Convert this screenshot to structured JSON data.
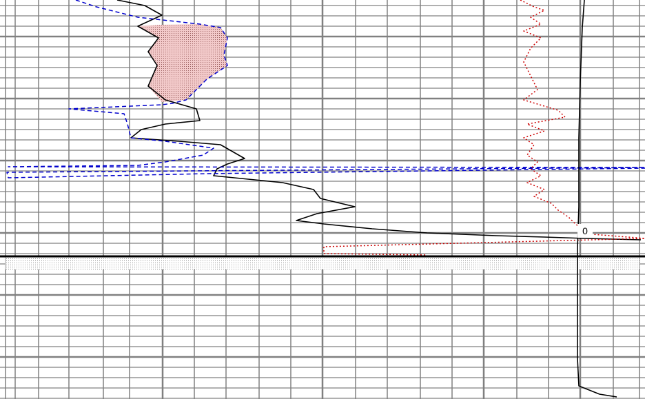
{
  "chart_data": {
    "type": "line",
    "title": "",
    "xlabel": "",
    "ylabel": "",
    "grid": true,
    "legend": "none",
    "background_color": "#ffffff",
    "grid_color": "#808080",
    "formation_boundary_color": "#000000",
    "zero_marker_label": "0",
    "series": [
      {
        "color": "#000000",
        "style": "solid",
        "points": [
          [
            170,
            0
          ],
          [
            210,
            8
          ],
          [
            235,
            22
          ],
          [
            200,
            38
          ],
          [
            230,
            55
          ],
          [
            215,
            75
          ],
          [
            228,
            95
          ],
          [
            215,
            125
          ],
          [
            240,
            145
          ],
          [
            285,
            158
          ],
          [
            290,
            175
          ],
          [
            240,
            180
          ],
          [
            205,
            188
          ],
          [
            190,
            200
          ],
          [
            260,
            205
          ],
          [
            320,
            210
          ],
          [
            355,
            230
          ],
          [
            330,
            238
          ],
          [
            315,
            245
          ],
          [
            310,
            255
          ],
          [
            360,
            260
          ],
          [
            410,
            265
          ],
          [
            455,
            275
          ],
          [
            465,
            288
          ],
          [
            515,
            300
          ],
          [
            460,
            310
          ],
          [
            430,
            320
          ],
          [
            470,
            325
          ],
          [
            540,
            332
          ],
          [
            620,
            338
          ],
          [
            720,
            342
          ],
          [
            790,
            344
          ],
          [
            850,
            346
          ],
          [
            890,
            347
          ],
          [
            930,
            348
          ]
        ]
      },
      {
        "color": "#0000cc",
        "style": "dashed",
        "points": [
          [
            110,
            0
          ],
          [
            140,
            10
          ],
          [
            200,
            25
          ],
          [
            290,
            35
          ],
          [
            320,
            40
          ],
          [
            330,
            55
          ],
          [
            325,
            80
          ],
          [
            330,
            95
          ],
          [
            300,
            115
          ],
          [
            285,
            130
          ],
          [
            270,
            145
          ],
          [
            250,
            150
          ],
          [
            235,
            152
          ],
          [
            100,
            158
          ],
          [
            180,
            165
          ],
          [
            185,
            180
          ],
          [
            190,
            200
          ],
          [
            240,
            205
          ],
          [
            310,
            215
          ],
          [
            295,
            225
          ],
          [
            240,
            235
          ],
          [
            200,
            240
          ],
          [
            12,
            242
          ],
          [
            936,
            243
          ],
          [
            10,
            250
          ],
          [
            12,
            258
          ],
          [
            300,
            252
          ],
          [
            936,
            244
          ]
        ]
      },
      {
        "color": "#cc0000",
        "style": "dotted",
        "points": [
          [
            755,
            0
          ],
          [
            775,
            10
          ],
          [
            790,
            15
          ],
          [
            770,
            25
          ],
          [
            785,
            35
          ],
          [
            760,
            45
          ],
          [
            785,
            55
          ],
          [
            770,
            70
          ],
          [
            760,
            90
          ],
          [
            770,
            110
          ],
          [
            780,
            130
          ],
          [
            760,
            145
          ],
          [
            810,
            160
          ],
          [
            820,
            170
          ],
          [
            765,
            180
          ],
          [
            790,
            190
          ],
          [
            760,
            200
          ],
          [
            775,
            210
          ],
          [
            765,
            225
          ],
          [
            780,
            235
          ],
          [
            770,
            245
          ],
          [
            785,
            255
          ],
          [
            765,
            265
          ],
          [
            790,
            275
          ],
          [
            775,
            285
          ],
          [
            800,
            295
          ],
          [
            810,
            305
          ],
          [
            825,
            315
          ],
          [
            835,
            325
          ],
          [
            845,
            332
          ],
          [
            860,
            340
          ],
          [
            936,
            346
          ],
          [
            470,
            358
          ],
          [
            470,
            368
          ],
          [
            620,
            370
          ]
        ]
      },
      {
        "color": "#000000",
        "style": "solid",
        "points": [
          [
            848,
            0
          ],
          [
            845,
            40
          ],
          [
            842,
            120
          ],
          [
            840,
            200
          ],
          [
            840,
            300
          ],
          [
            838,
            360
          ],
          [
            838,
            440
          ],
          [
            838,
            520
          ],
          [
            840,
            560
          ],
          [
            870,
            572
          ],
          [
            895,
            576
          ]
        ]
      }
    ]
  }
}
